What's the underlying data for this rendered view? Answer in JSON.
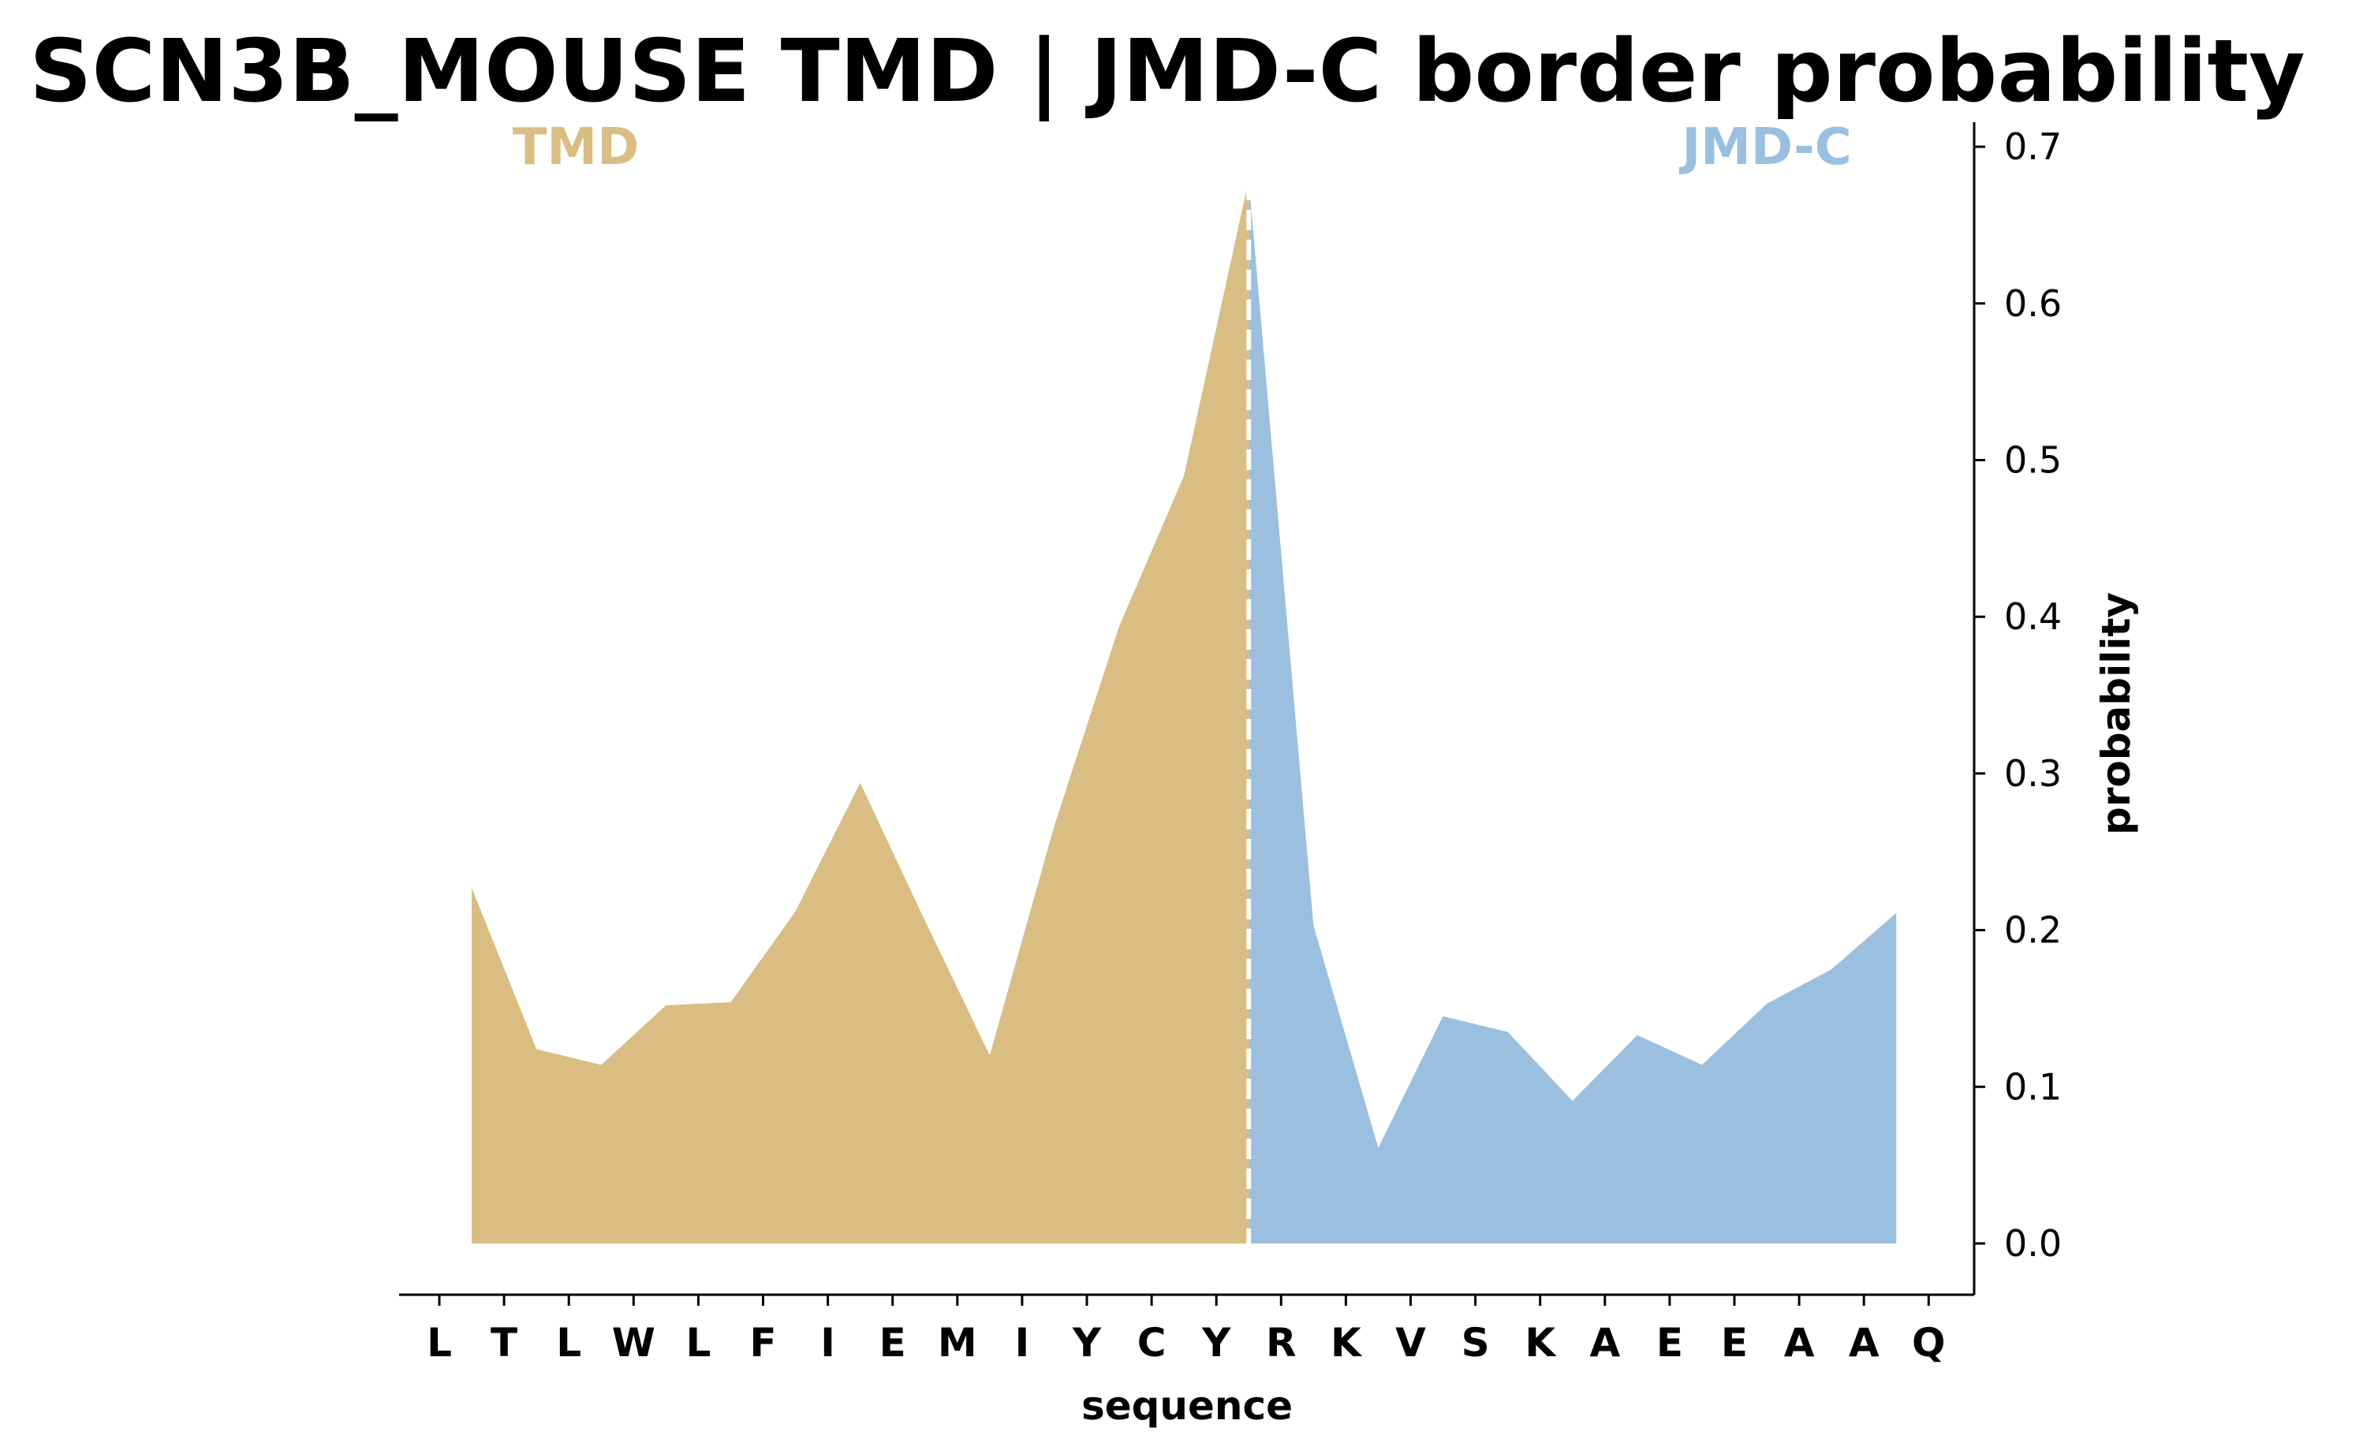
{
  "chart_data": {
    "type": "area",
    "title": "SCN3B_MOUSE TMD | JMD-C border probability",
    "xlabel": "sequence",
    "ylabel": "probability",
    "ylim": [
      -0.033,
      0.715
    ],
    "yticks": [
      "0.0",
      "0.1",
      "0.2",
      "0.3",
      "0.4",
      "0.5",
      "0.6",
      "0.7"
    ],
    "y_axis_side": "right",
    "sequence": [
      "L",
      "T",
      "L",
      "W",
      "L",
      "F",
      "I",
      "E",
      "M",
      "I",
      "Y",
      "C",
      "Y",
      "R",
      "K",
      "V",
      "S",
      "K",
      "A",
      "E",
      "E",
      "A",
      "A",
      "Q"
    ],
    "border_position": 12.5,
    "regions": [
      {
        "name": "TMD",
        "color": "#d9bd82",
        "x": [
          0.5,
          1.5,
          2.5,
          3.5,
          4.5,
          5.5,
          6.5,
          7.5,
          8.5,
          9.5,
          10.5,
          11.5,
          12.5
        ],
        "y": [
          0.227,
          0.124,
          0.114,
          0.152,
          0.154,
          0.212,
          0.294,
          0.206,
          0.12,
          0.267,
          0.394,
          0.49,
          0.679
        ]
      },
      {
        "name": "JMD-C",
        "color": "#9bbfdf",
        "x": [
          12.5,
          13.5,
          14.5,
          15.5,
          16.5,
          17.5,
          18.5,
          19.5,
          20.5,
          21.5,
          22.5
        ],
        "y": [
          0.679,
          0.203,
          0.061,
          0.145,
          0.135,
          0.091,
          0.133,
          0.114,
          0.153,
          0.175,
          0.211
        ]
      }
    ]
  }
}
